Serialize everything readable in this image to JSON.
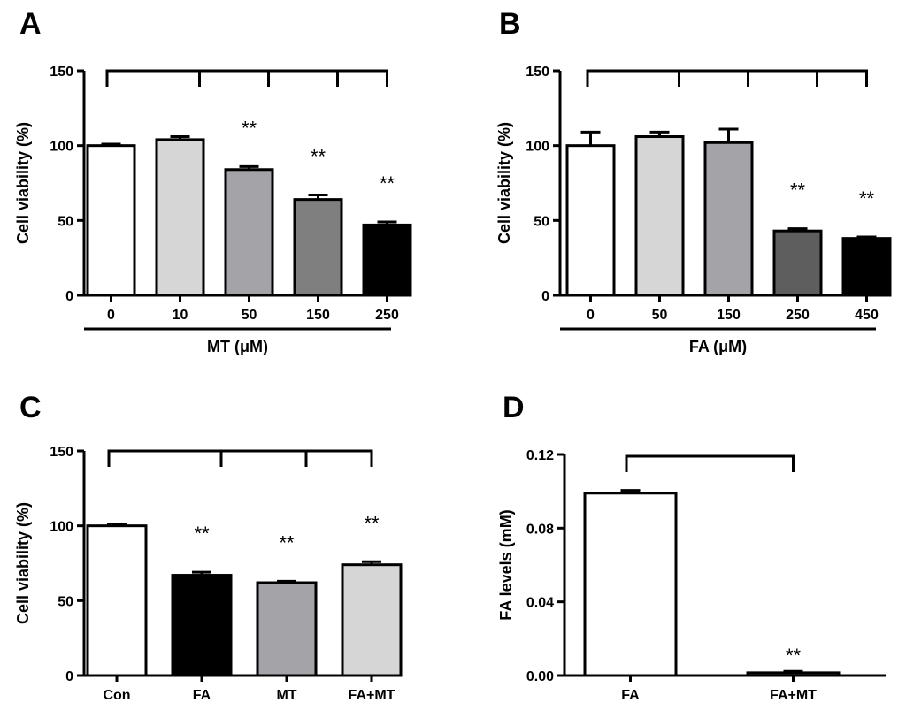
{
  "chart_data": [
    {
      "panel": "A",
      "type": "bar",
      "categories": [
        "0",
        "10",
        "50",
        "150",
        "250"
      ],
      "values": [
        100,
        104,
        84,
        64,
        47
      ],
      "errors": [
        1,
        2,
        2,
        3,
        2
      ],
      "colors": [
        "#ffffff",
        "#d6d6d6",
        "#a3a3a8",
        "#7f7f7f",
        "#000000"
      ],
      "significance": [
        "",
        "",
        "**",
        "**",
        "**"
      ],
      "ylabel": "Cell viability (%)",
      "xlabel": "MT (μM)",
      "ylim": [
        0,
        150
      ],
      "yticks": [
        "0",
        "50",
        "100",
        "150"
      ],
      "ytick_values": [
        0,
        50,
        100,
        150
      ],
      "comparison_bracket": true,
      "xlabel_underline": true
    },
    {
      "panel": "B",
      "type": "bar",
      "categories": [
        "0",
        "50",
        "150",
        "250",
        "450"
      ],
      "values": [
        100,
        106,
        102,
        43,
        38
      ],
      "errors": [
        9,
        3,
        9,
        1.5,
        1
      ],
      "colors": [
        "#ffffff",
        "#d6d6d6",
        "#a3a3a8",
        "#5e5e5e",
        "#000000"
      ],
      "significance": [
        "",
        "",
        "",
        "**",
        "**"
      ],
      "ylabel": "Cell viability (%)",
      "xlabel": "FA (μM)",
      "ylim": [
        0,
        150
      ],
      "yticks": [
        "0",
        "50",
        "100",
        "150"
      ],
      "ytick_values": [
        0,
        50,
        100,
        150
      ],
      "comparison_bracket": true,
      "xlabel_underline": true
    },
    {
      "panel": "C",
      "type": "bar",
      "categories": [
        "Con",
        "FA",
        "MT",
        "FA+MT"
      ],
      "values": [
        100,
        67,
        62,
        74
      ],
      "errors": [
        1,
        2,
        1,
        2
      ],
      "colors": [
        "#ffffff",
        "#000000",
        "#a3a3a8",
        "#d6d6d6"
      ],
      "significance": [
        "",
        "**",
        "**",
        "**"
      ],
      "ylabel": "Cell viability (%)",
      "xlabel": "",
      "ylim": [
        0,
        150
      ],
      "yticks": [
        "0",
        "50",
        "100",
        "150"
      ],
      "ytick_values": [
        0,
        50,
        100,
        150
      ],
      "comparison_bracket": true,
      "xlabel_underline": false
    },
    {
      "panel": "D",
      "type": "bar",
      "categories": [
        "FA",
        "FA+MT"
      ],
      "values": [
        0.099,
        0.0015
      ],
      "errors": [
        0.0015,
        0.0008
      ],
      "colors": [
        "#ffffff",
        "#a3a3a8"
      ],
      "significance": [
        "",
        "**"
      ],
      "ylabel": "FA levels (mM)",
      "xlabel": "",
      "ylim": [
        0,
        0.12
      ],
      "yticks": [
        "0.00",
        "0.04",
        "0.08",
        "0.12"
      ],
      "ytick_values": [
        0,
        0.04,
        0.08,
        0.12
      ],
      "comparison_bracket": true,
      "xlabel_underline": false
    }
  ]
}
